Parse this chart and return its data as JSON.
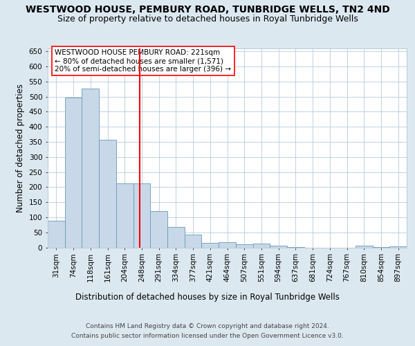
{
  "title": "WESTWOOD HOUSE, PEMBURY ROAD, TUNBRIDGE WELLS, TN2 4ND",
  "subtitle": "Size of property relative to detached houses in Royal Tunbridge Wells",
  "xlabel": "Distribution of detached houses by size in Royal Tunbridge Wells",
  "ylabel": "Number of detached properties",
  "footnote1": "Contains HM Land Registry data © Crown copyright and database right 2024.",
  "footnote2": "Contains public sector information licensed under the Open Government Licence v3.0.",
  "bar_labels": [
    "31sqm",
    "74sqm",
    "118sqm",
    "161sqm",
    "204sqm",
    "248sqm",
    "291sqm",
    "334sqm",
    "377sqm",
    "421sqm",
    "464sqm",
    "507sqm",
    "551sqm",
    "594sqm",
    "637sqm",
    "681sqm",
    "724sqm",
    "767sqm",
    "810sqm",
    "854sqm",
    "897sqm"
  ],
  "bar_values": [
    88,
    497,
    528,
    358,
    212,
    212,
    120,
    68,
    42,
    16,
    18,
    10,
    12,
    5,
    1,
    0,
    0,
    0,
    5,
    1,
    3
  ],
  "bar_color": "#c8d8e8",
  "bar_edge_color": "#6699bb",
  "vline_color": "red",
  "vline_pos": 4.89,
  "annotation_text": "WESTWOOD HOUSE PEMBURY ROAD: 221sqm\n← 80% of detached houses are smaller (1,571)\n20% of semi-detached houses are larger (396) →",
  "ylim": [
    0,
    660
  ],
  "yticks": [
    0,
    50,
    100,
    150,
    200,
    250,
    300,
    350,
    400,
    450,
    500,
    550,
    600,
    650
  ],
  "background_color": "#dce8f0",
  "plot_bg_color": "white",
  "grid_color": "#b8ccd8",
  "title_fontsize": 10,
  "subtitle_fontsize": 9,
  "axis_label_fontsize": 8.5,
  "tick_fontsize": 7.5,
  "footnote_fontsize": 6.5,
  "annotation_fontsize": 7.5
}
